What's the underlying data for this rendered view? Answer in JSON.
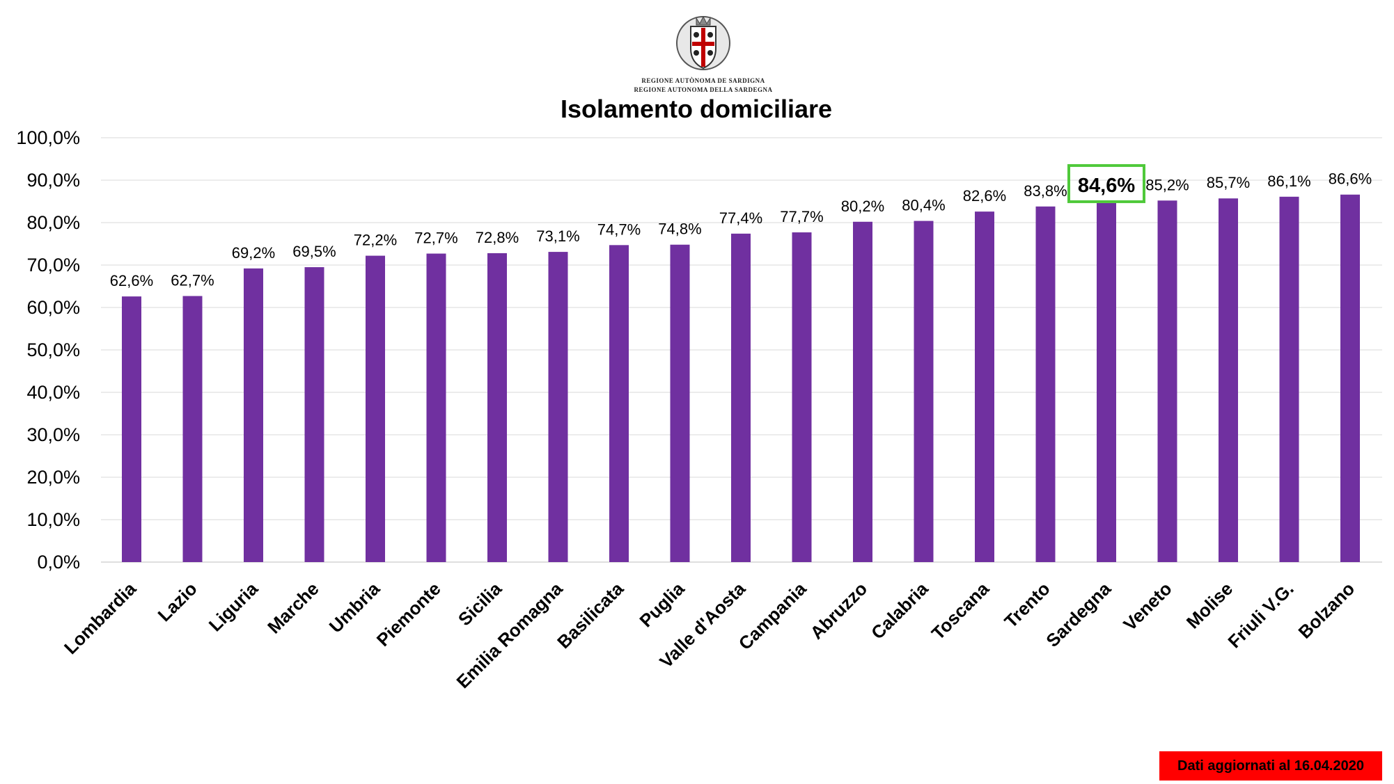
{
  "header": {
    "org_line_1": "REGIONE AUTÒNOMA DE SARDIGNA",
    "org_line_2": "REGIONE AUTONOMA DELLA SARDEGNA",
    "logo_icon": "sardinia-coat-of-arms-icon"
  },
  "footer": {
    "note": "Dati aggiornati al 16.04.2020"
  },
  "colors": {
    "bar": "#7030a0",
    "highlight_box": "#4fc93a",
    "grid": "#d9d9d9",
    "footer_bg": "#ff0000"
  },
  "chart_data": {
    "type": "bar",
    "title": "Isolamento domiciliare",
    "xlabel": "",
    "ylabel": "",
    "ylim": [
      0,
      100
    ],
    "grid": true,
    "y_ticks": [
      0,
      10,
      20,
      30,
      40,
      50,
      60,
      70,
      80,
      90,
      100
    ],
    "y_tick_labels": [
      "0,0%",
      "10,0%",
      "20,0%",
      "30,0%",
      "40,0%",
      "50,0%",
      "60,0%",
      "70,0%",
      "80,0%",
      "90,0%",
      "100,0%"
    ],
    "categories": [
      "Lombardia",
      "Lazio",
      "Liguria",
      "Marche",
      "Umbria",
      "Piemonte",
      "Sicilia",
      "Emilia Romagna",
      "Basilicata",
      "Puglia",
      "Valle d'Aosta",
      "Campania",
      "Abruzzo",
      "Calabria",
      "Toscana",
      "Trento",
      "Sardegna",
      "Veneto",
      "Molise",
      "Friuli V.G.",
      "Bolzano"
    ],
    "values": [
      62.6,
      62.7,
      69.2,
      69.5,
      72.2,
      72.7,
      72.8,
      73.1,
      74.7,
      74.8,
      77.4,
      77.7,
      80.2,
      80.4,
      82.6,
      83.8,
      84.6,
      85.2,
      85.7,
      86.1,
      86.6
    ],
    "labels": [
      "62,6%",
      "62,7%",
      "69,2%",
      "69,5%",
      "72,2%",
      "72,7%",
      "72,8%",
      "73,1%",
      "74,7%",
      "74,8%",
      "77,4%",
      "77,7%",
      "80,2%",
      "80,4%",
      "82,6%",
      "83,8%",
      "84,6%",
      "85,2%",
      "85,7%",
      "86,1%",
      "86,6%"
    ],
    "highlight_category": "Sardegna"
  }
}
